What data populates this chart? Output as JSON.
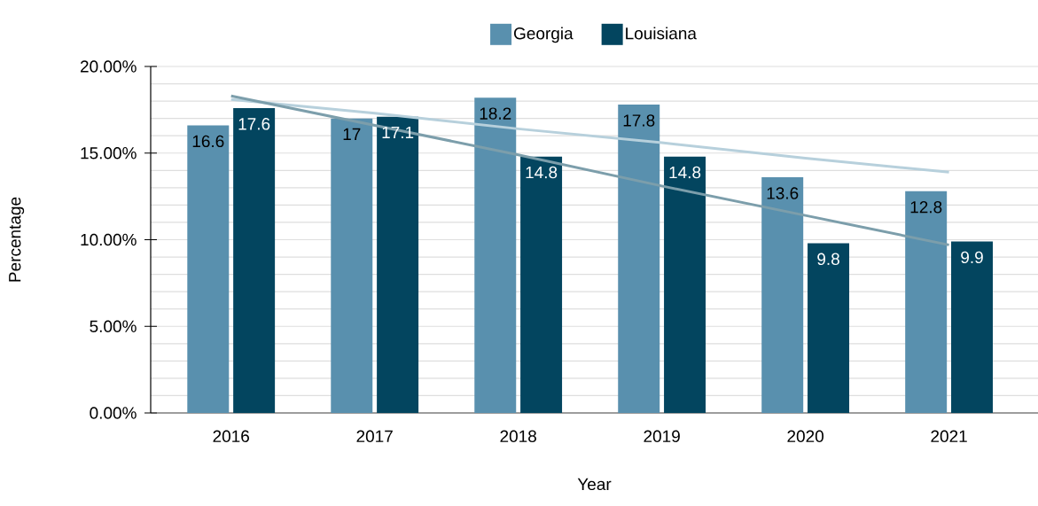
{
  "chart_data": {
    "type": "bar",
    "xlabel": "Year",
    "ylabel": "Percentage",
    "categories": [
      "2016",
      "2017",
      "2018",
      "2019",
      "2020",
      "2021"
    ],
    "series": [
      {
        "name": "Georgia",
        "color": "#5990ae",
        "values": [
          16.6,
          17,
          18.2,
          17.8,
          13.6,
          12.8
        ],
        "value_labels": [
          "16.6",
          "17",
          "18.2",
          "17.8",
          "13.6",
          "12.8"
        ]
      },
      {
        "name": "Louisiana",
        "color": "#03455f",
        "values": [
          17.6,
          17.1,
          14.8,
          14.8,
          9.8,
          9.9
        ],
        "value_labels": [
          "17.6",
          "17.1",
          "14.8",
          "14.8",
          "9.8",
          "9.9"
        ]
      },
      {
        "type": "line",
        "color": "#b7d0dc",
        "values": [
          18.1,
          17.3,
          16.4,
          15.6,
          14.7,
          13.9
        ]
      },
      {
        "type": "line",
        "color": "#7c9eab",
        "values": [
          18.3,
          16.6,
          14.9,
          13.1,
          11.4,
          9.7
        ]
      }
    ],
    "ylim": [
      0,
      20
    ],
    "yticks": [
      {
        "value": 0,
        "label": "0.00%"
      },
      {
        "value": 1,
        "label": null
      },
      {
        "value": 2,
        "label": null
      },
      {
        "value": 3,
        "label": null
      },
      {
        "value": 4,
        "label": null
      },
      {
        "value": 5,
        "label": "5.00%"
      },
      {
        "value": 6,
        "label": null
      },
      {
        "value": 7,
        "label": null
      },
      {
        "value": 8,
        "label": null
      },
      {
        "value": 9,
        "label": null
      },
      {
        "value": 10,
        "label": "10.00%"
      },
      {
        "value": 11,
        "label": null
      },
      {
        "value": 12,
        "label": null
      },
      {
        "value": 13,
        "label": null
      },
      {
        "value": 14,
        "label": null
      },
      {
        "value": 15,
        "label": "15.00%"
      },
      {
        "value": 16,
        "label": null
      },
      {
        "value": 17,
        "label": null
      },
      {
        "value": 18,
        "label": null
      },
      {
        "value": 19,
        "label": null
      },
      {
        "value": 20,
        "label": "20.00%"
      }
    ],
    "grid": "y",
    "legend": "top"
  }
}
